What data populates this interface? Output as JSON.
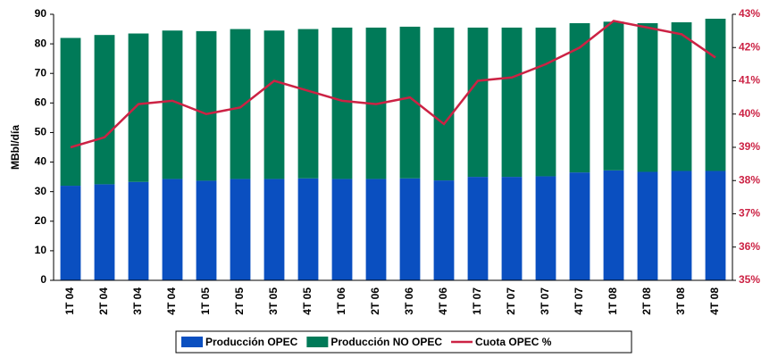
{
  "chart_data": {
    "type": "bar",
    "y_label": "MBbl/día",
    "categories": [
      "1T 04",
      "2T 04",
      "3T 04",
      "4T 04",
      "1T 05",
      "2T 05",
      "3T 05",
      "4T 05",
      "1T 06",
      "2T 06",
      "3T 06",
      "4T 06",
      "1T 07",
      "2T 07",
      "3T 07",
      "4T 07",
      "1T 08",
      "2T 08",
      "3T 08",
      "4T 08"
    ],
    "series": [
      {
        "name": "Producción OPEC",
        "color": "#0a4fc0",
        "values": [
          32,
          32.5,
          33.3,
          34.3,
          33.7,
          34.3,
          34.3,
          34.5,
          34.3,
          34.3,
          34.5,
          33.8,
          35,
          35,
          35.2,
          36.5,
          37.2,
          36.7,
          37,
          37
        ]
      },
      {
        "name": "Producción NO OPEC",
        "color": "#007a58",
        "values": [
          50,
          50.5,
          50.2,
          50.2,
          50.6,
          50.7,
          50.2,
          50.5,
          51.2,
          51.2,
          51.3,
          51.7,
          50.5,
          50.5,
          50.3,
          50.5,
          50.3,
          50.3,
          50.3,
          51.5
        ]
      },
      {
        "name": "Cuota OPEC %",
        "color": "#cc2244",
        "axis": "y2",
        "type": "line",
        "values": [
          39.0,
          39.3,
          40.3,
          40.4,
          40.0,
          40.2,
          41.0,
          40.7,
          40.4,
          40.3,
          40.5,
          39.7,
          41.0,
          41.1,
          41.5,
          42.0,
          42.8,
          42.6,
          42.4,
          41.7
        ]
      }
    ],
    "stacked": true,
    "ylim": [
      0,
      90
    ],
    "yticks": [
      0,
      10,
      20,
      30,
      40,
      50,
      60,
      70,
      80,
      90
    ],
    "y2lim": [
      35,
      43
    ],
    "y2ticks": [
      {
        "value": 35,
        "label": "35%"
      },
      {
        "value": 36,
        "label": "36%"
      },
      {
        "value": 37,
        "label": "37%"
      },
      {
        "value": 38,
        "label": "38%"
      },
      {
        "value": 39,
        "label": "39%"
      },
      {
        "value": 40,
        "label": "40%"
      },
      {
        "value": 41,
        "label": "41%"
      },
      {
        "value": 42,
        "label": "42%"
      },
      {
        "value": 43,
        "label": "43%"
      }
    ],
    "legend": "bottom"
  }
}
